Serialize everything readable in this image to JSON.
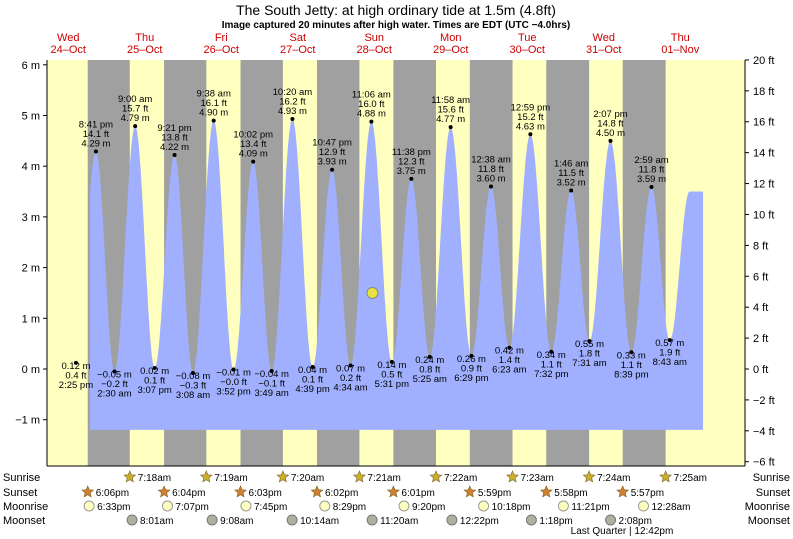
{
  "header": {
    "title": "The South Jetty: at high  ordinary tide at 1.5m (4.8ft)",
    "subtitle": "Image captured 20 minutes after high water. Times are EDT (UTC −4.0hrs)"
  },
  "colors": {
    "night": "#a0a0a0",
    "day": "#ffffc0",
    "water": "#a0b0ff",
    "day_label": "#cc0000",
    "sun_star": "#c8b030",
    "sunset_star": "#d08030",
    "moonrise": "#ffffc0",
    "moonset": "#b0b0a0",
    "now_marker": "#e8e040"
  },
  "chart_data": {
    "type": "area",
    "title": "The South Jetty: at high  ordinary tide at 1.5m (4.8ft)",
    "ylabel_left": "m",
    "ylabel_right": "ft",
    "ylim_m": [
      -1.8,
      6.2
    ],
    "yticks_m": [
      "6 m",
      "5 m",
      "4 m",
      "3 m",
      "2 m",
      "1 m",
      "0 m",
      "−1 m"
    ],
    "yticks_ft": [
      "20 ft",
      "18 ft",
      "16 ft",
      "14 ft",
      "12 ft",
      "10 ft",
      "8 ft",
      "6 ft",
      "4 ft",
      "2 ft",
      "0 ft",
      "−2 ft",
      "−4 ft",
      "−6 ft"
    ],
    "days": [
      {
        "dow": "Wed",
        "date": "24–Oct"
      },
      {
        "dow": "Thu",
        "date": "25–Oct"
      },
      {
        "dow": "Fri",
        "date": "26–Oct"
      },
      {
        "dow": "Sat",
        "date": "27–Oct"
      },
      {
        "dow": "Sun",
        "date": "28–Oct"
      },
      {
        "dow": "Mon",
        "date": "29–Oct"
      },
      {
        "dow": "Tue",
        "date": "30–Oct"
      },
      {
        "dow": "Wed",
        "date": "31–Oct"
      },
      {
        "dow": "Thu",
        "date": "01–Nov"
      }
    ],
    "tide_events": [
      {
        "type": "low",
        "time": "2:25 pm",
        "m": "0.12 m",
        "ft": "0.4 ft",
        "day": 0,
        "hour": 14.42,
        "h": 0.12
      },
      {
        "type": "high",
        "time": "8:41 pm",
        "m": "4.29 m",
        "ft": "14.1 ft",
        "day": 0,
        "hour": 20.68,
        "h": 4.29
      },
      {
        "type": "low",
        "time": "2:30 am",
        "m": "−0.05 m",
        "ft": "−0.2 ft",
        "day": 1,
        "hour": 2.5,
        "h": -0.05
      },
      {
        "type": "high",
        "time": "9:00 am",
        "m": "4.79 m",
        "ft": "15.7 ft",
        "day": 1,
        "hour": 9.0,
        "h": 4.79
      },
      {
        "type": "low",
        "time": "3:07 pm",
        "m": "0.02 m",
        "ft": "0.1 ft",
        "day": 1,
        "hour": 15.12,
        "h": 0.02
      },
      {
        "type": "high",
        "time": "9:21 pm",
        "m": "4.22 m",
        "ft": "13.8 ft",
        "day": 1,
        "hour": 21.35,
        "h": 4.22
      },
      {
        "type": "low",
        "time": "3:08 am",
        "m": "−0.08 m",
        "ft": "−0.3 ft",
        "day": 2,
        "hour": 3.13,
        "h": -0.08
      },
      {
        "type": "high",
        "time": "9:38 am",
        "m": "4.90 m",
        "ft": "16.1 ft",
        "day": 2,
        "hour": 9.63,
        "h": 4.9
      },
      {
        "type": "low",
        "time": "3:52 pm",
        "m": "−0.01 m",
        "ft": "−0.0 ft",
        "day": 2,
        "hour": 15.87,
        "h": -0.01
      },
      {
        "type": "high",
        "time": "10:02 pm",
        "m": "4.09 m",
        "ft": "13.4 ft",
        "day": 2,
        "hour": 22.03,
        "h": 4.09
      },
      {
        "type": "low",
        "time": "3:49 am",
        "m": "−0.04 m",
        "ft": "−0.1 ft",
        "day": 3,
        "hour": 3.82,
        "h": -0.04
      },
      {
        "type": "high",
        "time": "10:20 am",
        "m": "4.93 m",
        "ft": "16.2 ft",
        "day": 3,
        "hour": 10.33,
        "h": 4.93
      },
      {
        "type": "low",
        "time": "4:39 pm",
        "m": "0.04 m",
        "ft": "0.1 ft",
        "day": 3,
        "hour": 16.65,
        "h": 0.04
      },
      {
        "type": "high",
        "time": "10:47 pm",
        "m": "3.93 m",
        "ft": "12.9 ft",
        "day": 3,
        "hour": 22.78,
        "h": 3.93
      },
      {
        "type": "low",
        "time": "4:34 am",
        "m": "0.07 m",
        "ft": "0.2 ft",
        "day": 4,
        "hour": 4.57,
        "h": 0.07
      },
      {
        "type": "high",
        "time": "11:06 am",
        "m": "4.88 m",
        "ft": "16.0 ft",
        "day": 4,
        "hour": 11.1,
        "h": 4.88
      },
      {
        "type": "low",
        "time": "5:31 pm",
        "m": "0.14 m",
        "ft": "0.5 ft",
        "day": 4,
        "hour": 17.52,
        "h": 0.14
      },
      {
        "type": "high",
        "time": "11:38 pm",
        "m": "3.75 m",
        "ft": "12.3 ft",
        "day": 4,
        "hour": 23.63,
        "h": 3.75
      },
      {
        "type": "low",
        "time": "5:25 am",
        "m": "0.24 m",
        "ft": "0.8 ft",
        "day": 5,
        "hour": 5.42,
        "h": 0.24
      },
      {
        "type": "high",
        "time": "11:58 am",
        "m": "4.77 m",
        "ft": "15.6 ft",
        "day": 5,
        "hour": 11.97,
        "h": 4.77
      },
      {
        "type": "low",
        "time": "6:29 pm",
        "m": "0.26 m",
        "ft": "0.9 ft",
        "day": 5,
        "hour": 18.48,
        "h": 0.26
      },
      {
        "type": "high",
        "time": "12:38 am",
        "m": "3.60 m",
        "ft": "11.8 ft",
        "day": 6,
        "hour": 0.63,
        "h": 3.6
      },
      {
        "type": "low",
        "time": "6:23 am",
        "m": "0.42 m",
        "ft": "1.4 ft",
        "day": 6,
        "hour": 6.38,
        "h": 0.42
      },
      {
        "type": "high",
        "time": "12:59 pm",
        "m": "4.63 m",
        "ft": "15.2 ft",
        "day": 6,
        "hour": 12.98,
        "h": 4.63
      },
      {
        "type": "low",
        "time": "7:32 pm",
        "m": "0.34 m",
        "ft": "1.1 ft",
        "day": 6,
        "hour": 19.53,
        "h": 0.34
      },
      {
        "type": "high",
        "time": "1:46 am",
        "m": "3.52 m",
        "ft": "11.5 ft",
        "day": 7,
        "hour": 1.77,
        "h": 3.52
      },
      {
        "type": "low",
        "time": "7:31 am",
        "m": "0.55 m",
        "ft": "1.8 ft",
        "day": 7,
        "hour": 7.52,
        "h": 0.55
      },
      {
        "type": "high",
        "time": "2:07 pm",
        "m": "4.50 m",
        "ft": "14.8 ft",
        "day": 7,
        "hour": 14.12,
        "h": 4.5
      },
      {
        "type": "low",
        "time": "8:39 pm",
        "m": "0.33 m",
        "ft": "1.1 ft",
        "day": 7,
        "hour": 20.65,
        "h": 0.33
      },
      {
        "type": "high",
        "time": "2:59 am",
        "m": "3.59 m",
        "ft": "11.8 ft",
        "day": 8,
        "hour": 2.98,
        "h": 3.59
      },
      {
        "type": "low",
        "time": "8:43 am",
        "m": "0.57 m",
        "ft": "1.9 ft",
        "day": 8,
        "hour": 8.72,
        "h": 0.57
      }
    ],
    "current": {
      "day": 4,
      "hour": 11.43,
      "h": 1.5
    },
    "sunrise": [
      {
        "day": 1,
        "time": "7:18am"
      },
      {
        "day": 2,
        "time": "7:19am"
      },
      {
        "day": 3,
        "time": "7:20am"
      },
      {
        "day": 4,
        "time": "7:21am"
      },
      {
        "day": 5,
        "time": "7:22am"
      },
      {
        "day": 6,
        "time": "7:23am"
      },
      {
        "day": 7,
        "time": "7:24am"
      },
      {
        "day": 8,
        "time": "7:25am"
      }
    ],
    "sunset": [
      {
        "day": 0,
        "time": "6:06pm"
      },
      {
        "day": 1,
        "time": "6:04pm"
      },
      {
        "day": 2,
        "time": "6:03pm"
      },
      {
        "day": 3,
        "time": "6:02pm"
      },
      {
        "day": 4,
        "time": "6:01pm"
      },
      {
        "day": 5,
        "time": "5:59pm"
      },
      {
        "day": 6,
        "time": "5:58pm"
      },
      {
        "day": 7,
        "time": "5:57pm"
      }
    ],
    "moonrise": [
      {
        "day": 0,
        "time": "6:33pm"
      },
      {
        "day": 1,
        "time": "7:07pm"
      },
      {
        "day": 2,
        "time": "7:45pm"
      },
      {
        "day": 3,
        "time": "8:29pm"
      },
      {
        "day": 4,
        "time": "9:20pm"
      },
      {
        "day": 5,
        "time": "10:18pm"
      },
      {
        "day": 6,
        "time": "11:21pm"
      },
      {
        "day": 8,
        "time": "12:28am"
      }
    ],
    "moonset": [
      {
        "day": 1,
        "time": "8:01am"
      },
      {
        "day": 2,
        "time": "9:08am"
      },
      {
        "day": 3,
        "time": "10:14am"
      },
      {
        "day": 4,
        "time": "11:20am"
      },
      {
        "day": 5,
        "time": "12:22pm"
      },
      {
        "day": 6,
        "time": "1:18pm"
      },
      {
        "day": 7,
        "time": "2:08pm"
      }
    ],
    "bottom_rows": [
      "Sunrise",
      "Sunset",
      "Moonrise",
      "Moonset"
    ],
    "moon_phase_note": "Last Quarter | 12:42pm"
  }
}
